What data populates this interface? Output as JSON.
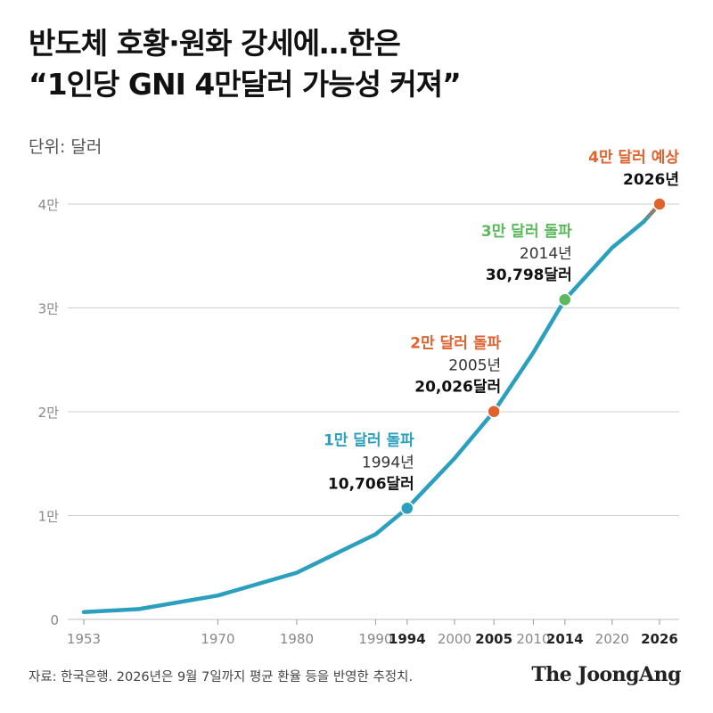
{
  "header": {
    "title_line1": "반도체 호황·원화 강세에…한은",
    "title_line2": "“1인당 GNI 4만달러 가능성 커져”",
    "unit": "단위: 달러"
  },
  "footer": {
    "source": "자료: 한국은행. 2026년은 9월 7일까지 평균 환율 등을 반영한 추정치.",
    "brand": "The JoongAng"
  },
  "colors": {
    "line": "#2b9fbe",
    "forecast": "#e0622f",
    "milestone_1": "#2b9fbe",
    "milestone_2": "#e0622f",
    "milestone_3": "#5cb85c",
    "milestone_4": "#e0622f",
    "grid": "#cccccc",
    "tick_text": "#888888"
  },
  "chart_data": {
    "type": "line",
    "title": "반도체 호황·원화 강세에…한은 “1인당 GNI 4만달러 가능성 커져”",
    "ylabel": "단위: 달러",
    "xlabel": "",
    "xlim": [
      1953,
      2026
    ],
    "ylim": [
      0,
      40000
    ],
    "grid": true,
    "y_ticks": [
      {
        "value": 0,
        "label": "0"
      },
      {
        "value": 10000,
        "label": "1만"
      },
      {
        "value": 20000,
        "label": "2만"
      },
      {
        "value": 30000,
        "label": "3만"
      },
      {
        "value": 40000,
        "label": "4만"
      }
    ],
    "x_ticks": [
      {
        "value": 1953,
        "label": "1953",
        "bold": false
      },
      {
        "value": 1970,
        "label": "1970",
        "bold": false
      },
      {
        "value": 1980,
        "label": "1980",
        "bold": false
      },
      {
        "value": 1990,
        "label": "1990",
        "bold": false
      },
      {
        "value": 1994,
        "label": "1994",
        "bold": true
      },
      {
        "value": 2000,
        "label": "2000",
        "bold": false
      },
      {
        "value": 2005,
        "label": "2005",
        "bold": true
      },
      {
        "value": 2010,
        "label": "2010",
        "bold": false
      },
      {
        "value": 2014,
        "label": "2014",
        "bold": true
      },
      {
        "value": 2020,
        "label": "2020",
        "bold": false
      },
      {
        "value": 2026,
        "label": "2026",
        "bold": true
      }
    ],
    "series": [
      {
        "points": [
          {
            "x": 1953,
            "y": 700
          },
          {
            "x": 1960,
            "y": 1000
          },
          {
            "x": 1970,
            "y": 2300
          },
          {
            "x": 1980,
            "y": 4500
          },
          {
            "x": 1990,
            "y": 8200
          },
          {
            "x": 1994,
            "y": 10706
          },
          {
            "x": 2000,
            "y": 15500
          },
          {
            "x": 2005,
            "y": 20026
          },
          {
            "x": 2010,
            "y": 25700
          },
          {
            "x": 2014,
            "y": 30798
          },
          {
            "x": 2020,
            "y": 35800
          },
          {
            "x": 2024,
            "y": 38300
          },
          {
            "x": 2026,
            "y": 40000
          }
        ]
      }
    ],
    "forecast_from": 2024,
    "milestones": [
      {
        "x": 1994,
        "y": 10706,
        "heading": "1만 달러 돌파",
        "year": "1994년",
        "value": "10,706달러"
      },
      {
        "x": 2005,
        "y": 20026,
        "heading": "2만 달러 돌파",
        "year": "2005년",
        "value": "20,026달러"
      },
      {
        "x": 2014,
        "y": 30798,
        "heading": "3만 달러 돌파",
        "year": "2014년",
        "value": "30,798달러"
      },
      {
        "x": 2026,
        "y": 40000,
        "heading": "4만 달러 예상",
        "year": "",
        "value": "2026년"
      }
    ]
  }
}
